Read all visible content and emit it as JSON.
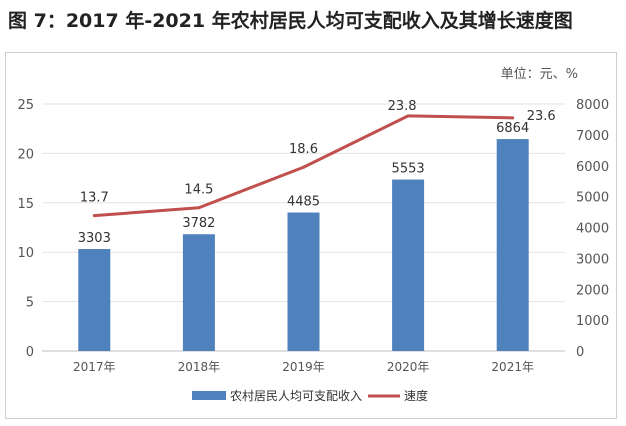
{
  "figure_title": "图 7：2017 年-2021 年农村居民人均可支配收入及其增长速度图",
  "chart_data": {
    "type": "bar",
    "unit_label": "单位：元、%",
    "categories": [
      "2017年",
      "2018年",
      "2019年",
      "2020年",
      "2021年"
    ],
    "series": [
      {
        "name": "农村居民人均可支配收入",
        "type": "bar",
        "axis": "right",
        "values": [
          3303,
          3782,
          4485,
          5553,
          6864
        ],
        "color": "#4f81bd"
      },
      {
        "name": "速度",
        "type": "line",
        "axis": "left",
        "values": [
          13.7,
          14.5,
          18.6,
          23.8,
          23.6
        ],
        "color": "#c0504d"
      }
    ],
    "left_axis": {
      "min": 0,
      "max": 25,
      "ticks": [
        "0",
        "5",
        "10",
        "15",
        "20",
        "25"
      ]
    },
    "right_axis": {
      "min": 0,
      "max": 8000,
      "ticks": [
        "0",
        "1000",
        "2000",
        "3000",
        "4000",
        "5000",
        "6000",
        "7000",
        "8000"
      ]
    },
    "grid": true,
    "legend_position": "bottom"
  }
}
